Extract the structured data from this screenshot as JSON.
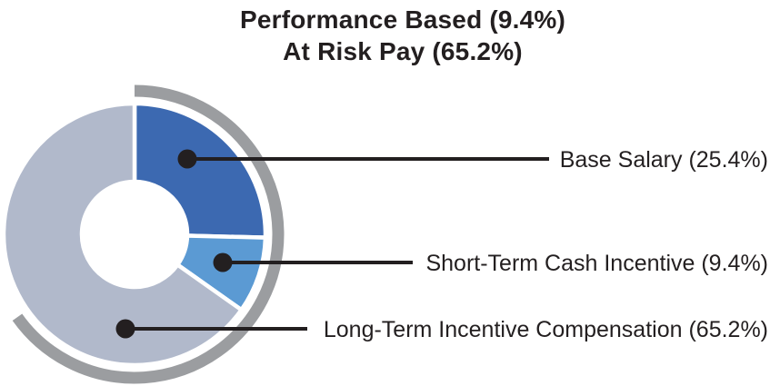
{
  "title": {
    "line1": "Performance Based (9.4%)",
    "line2": "At Risk Pay (65.2%)"
  },
  "chart_data": {
    "type": "pie",
    "subtype": "donut",
    "title": "Performance Based (9.4%) / At Risk Pay (65.2%)",
    "start_angle_deg": 0,
    "direction": "clockwise",
    "slices": [
      {
        "label": "Base Salary",
        "pct": 25.4,
        "color": "#3c69b1",
        "legend_text": "Base Salary (25.4%)"
      },
      {
        "label": "Short-Term Cash Incentive",
        "pct": 9.4,
        "color": "#5b9ad3",
        "legend_text": "Short-Term Cash Incentive (9.4%)"
      },
      {
        "label": "Long-Term Incentive Compensation",
        "pct": 65.2,
        "color": "#b1b9cb",
        "legend_text": "Long-Term Incentive Compensation (65.2%)"
      }
    ],
    "outer_ring": {
      "pct": 65.2,
      "color": "#9b9da0",
      "represents": "At Risk Pay (65.2%)"
    },
    "legend_position": "right",
    "leader_line_color": "#231f20",
    "text_color": "#231f20",
    "divider_color": "#ffffff"
  }
}
